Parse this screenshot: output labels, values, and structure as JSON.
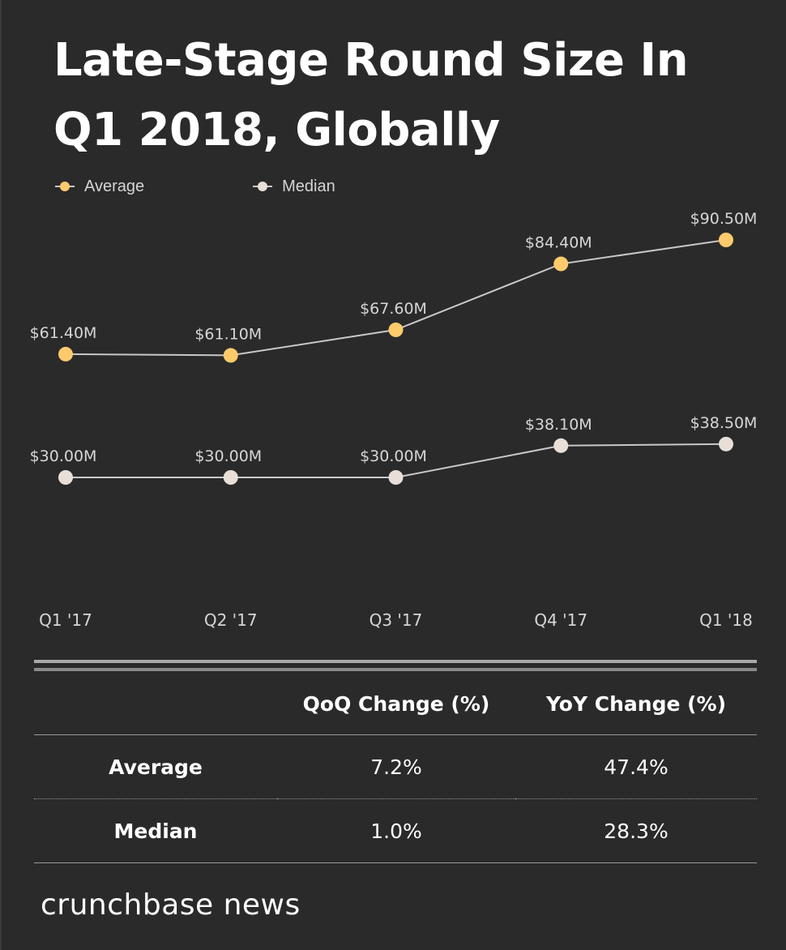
{
  "title": {
    "line1": "Late-Stage Round Size In",
    "line2": "Q1 2018, Globally"
  },
  "legend": [
    {
      "label": "Average",
      "color": "#fdca6c"
    },
    {
      "label": "Median",
      "color": "#e7dfd8"
    }
  ],
  "chart_data": {
    "type": "line",
    "title": "Late-Stage Round Size In Q1 2018, Globally",
    "categories": [
      "Q1 '17",
      "Q2 '17",
      "Q3 '17",
      "Q4 '17",
      "Q1 '18"
    ],
    "series": [
      {
        "name": "Average",
        "color": "#fdca6c",
        "values": [
          61.4,
          61.1,
          67.6,
          84.4,
          90.5
        ],
        "labels": [
          "$61.40M",
          "$61.10M",
          "$67.60M",
          "$84.40M",
          "$90.50M"
        ]
      },
      {
        "name": "Median",
        "color": "#e7dfd8",
        "values": [
          30.0,
          30.0,
          30.0,
          38.1,
          38.5
        ],
        "labels": [
          "$30.00M",
          "$30.00M",
          "$30.00M",
          "$38.10M",
          "$38.50M"
        ]
      }
    ],
    "unit": "$M",
    "ylim": [
      0,
      100
    ],
    "line_color": "#c8c8c8",
    "grid": false,
    "legend_position": "top-left"
  },
  "table": {
    "headers": [
      "",
      "QoQ Change (%)",
      "YoY Change (%)"
    ],
    "rows": [
      {
        "label": "Average",
        "qoq": "7.2%",
        "yoy": "47.4%"
      },
      {
        "label": "Median",
        "qoq": "1.0%",
        "yoy": "28.3%"
      }
    ]
  },
  "brand": "crunchbase news",
  "colors": {
    "background": "#2a2a2a",
    "text": "#ffffff",
    "muted_text": "#d6d6d6"
  }
}
